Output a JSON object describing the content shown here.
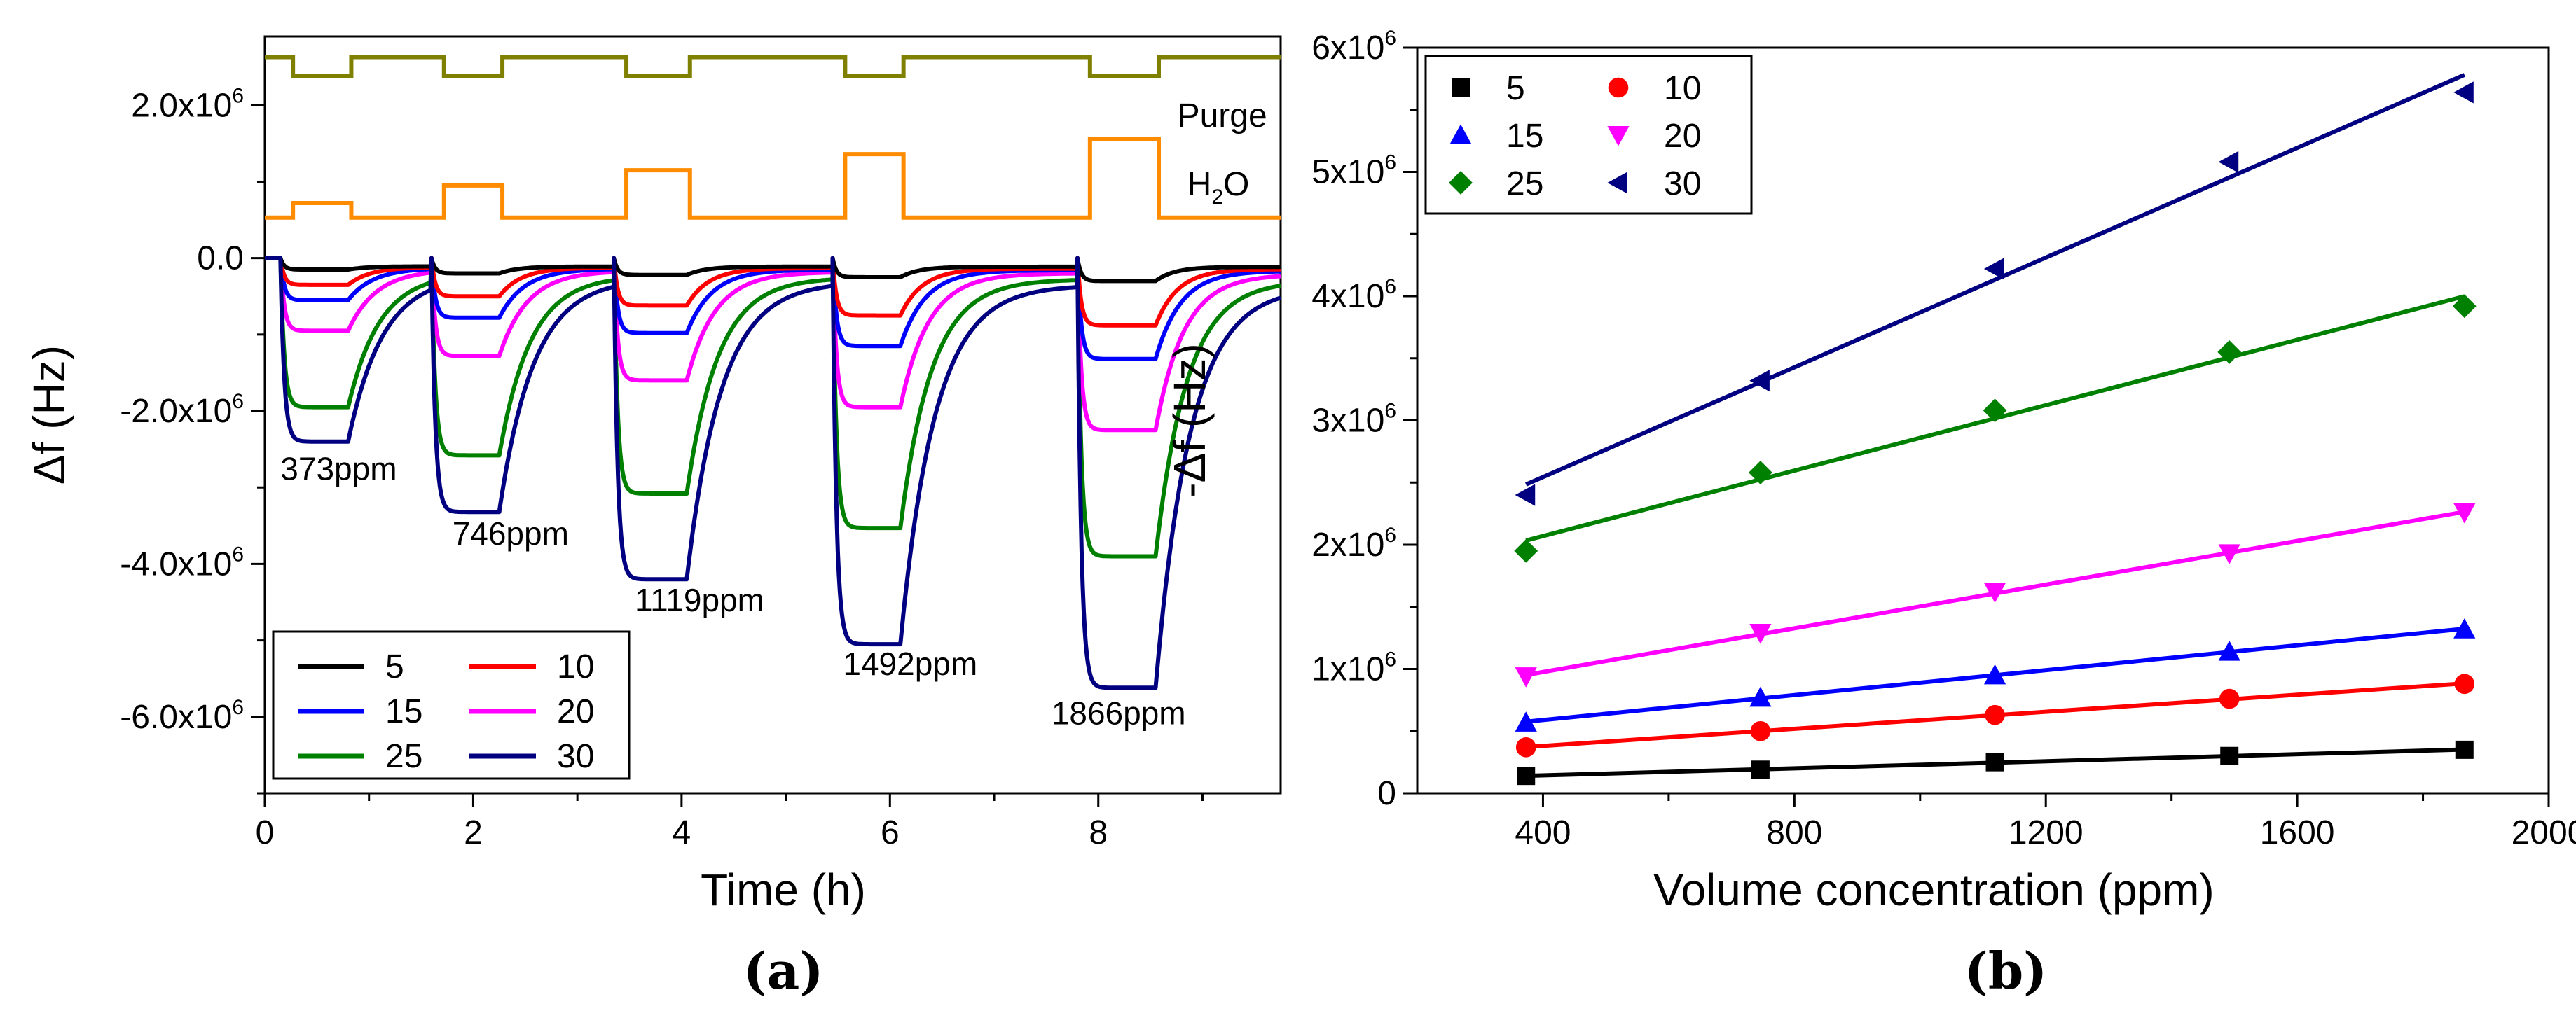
{
  "chart_data": [
    {
      "type": "line",
      "panel_label": "(a)",
      "xlabel": "Time (h)",
      "ylabel": "Δf (Hz)",
      "xlim": [
        0,
        9.75
      ],
      "ylim": [
        -7000000,
        2900000
      ],
      "x_ticks": [
        0,
        2,
        4,
        6,
        8
      ],
      "y_ticks": [
        {
          "value": 2000000,
          "mant": "2.0x10",
          "exp": "6"
        },
        {
          "value": 0,
          "mant": "0.0",
          "exp": ""
        },
        {
          "value": -2000000,
          "mant": "-2.0x10",
          "exp": "6"
        },
        {
          "value": -4000000,
          "mant": "-4.0x10",
          "exp": "6"
        },
        {
          "value": -6000000,
          "mant": "-6.0x10",
          "exp": "6"
        }
      ],
      "exposure_windows": [
        [
          0.15,
          0.8
        ],
        [
          1.6,
          2.25
        ],
        [
          3.35,
          4.05
        ],
        [
          5.45,
          6.1
        ],
        [
          7.8,
          8.55
        ]
      ],
      "series": [
        {
          "name": "5",
          "color": "#000000",
          "plateaus": [
            -150000,
            -200000,
            -220000,
            -250000,
            -300000
          ]
        },
        {
          "name": "10",
          "color": "#ff0000",
          "plateaus": [
            -350000,
            -500000,
            -620000,
            -750000,
            -880000
          ]
        },
        {
          "name": "15",
          "color": "#0000ff",
          "plateaus": [
            -550000,
            -780000,
            -980000,
            -1150000,
            -1320000
          ]
        },
        {
          "name": "20",
          "color": "#ff00ff",
          "plateaus": [
            -950000,
            -1280000,
            -1600000,
            -1950000,
            -2250000
          ]
        },
        {
          "name": "25",
          "color": "#008000",
          "plateaus": [
            -1950000,
            -2580000,
            -3080000,
            -3530000,
            -3900000
          ]
        },
        {
          "name": "30",
          "color": "#000080",
          "plateaus": [
            -2400000,
            -3320000,
            -4200000,
            -5050000,
            -5620000
          ]
        }
      ],
      "purge": {
        "name": "Purge",
        "color": "#808000",
        "high": 2630000,
        "low": 2380000
      },
      "h2o": {
        "name": "H2O",
        "label_main": "H",
        "label_sub": "2",
        "label_tail": "O",
        "color": "#ff8c00",
        "base": 530000,
        "peaks": [
          720000,
          950000,
          1150000,
          1360000,
          1560000
        ]
      },
      "annotations": [
        {
          "text": "373ppm",
          "x": 0.15,
          "y": -2900000
        },
        {
          "text": "746ppm",
          "x": 1.8,
          "y": -3750000
        },
        {
          "text": "1119ppm",
          "x": 3.55,
          "y": -4620000
        },
        {
          "text": "1492ppm",
          "x": 5.55,
          "y": -5450000
        },
        {
          "text": "1866ppm",
          "x": 7.55,
          "y": -6100000
        }
      ],
      "legend": {
        "placement": "bottom-left"
      }
    },
    {
      "type": "scatter",
      "panel_label": "(b)",
      "xlabel": "Volume concentration (ppm)",
      "ylabel": "-Δf (Hz)",
      "xlim": [
        200,
        2000
      ],
      "ylim": [
        0,
        6000000
      ],
      "x_ticks": [
        400,
        800,
        1200,
        1600,
        2000
      ],
      "y_ticks": [
        {
          "value": 0,
          "mant": "0",
          "exp": ""
        },
        {
          "value": 1000000,
          "mant": "1x10",
          "exp": "6"
        },
        {
          "value": 2000000,
          "mant": "2x10",
          "exp": "6"
        },
        {
          "value": 3000000,
          "mant": "3x10",
          "exp": "6"
        },
        {
          "value": 4000000,
          "mant": "4x10",
          "exp": "6"
        },
        {
          "value": 5000000,
          "mant": "5x10",
          "exp": "6"
        },
        {
          "value": 6000000,
          "mant": "6x10",
          "exp": "6"
        }
      ],
      "x": [
        373,
        746,
        1119,
        1492,
        1866
      ],
      "series": [
        {
          "name": "5",
          "color": "#000000",
          "marker": "square",
          "values": [
            140000,
            190000,
            250000,
            300000,
            350000
          ]
        },
        {
          "name": "10",
          "color": "#ff0000",
          "marker": "circle",
          "values": [
            370000,
            500000,
            630000,
            760000,
            880000
          ]
        },
        {
          "name": "15",
          "color": "#0000ff",
          "marker": "triangle-up",
          "values": [
            570000,
            770000,
            950000,
            1140000,
            1320000
          ]
        },
        {
          "name": "20",
          "color": "#ff00ff",
          "marker": "triangle-down",
          "values": [
            940000,
            1290000,
            1620000,
            1930000,
            2260000
          ]
        },
        {
          "name": "25",
          "color": "#008000",
          "marker": "diamond",
          "values": [
            1950000,
            2580000,
            3080000,
            3550000,
            3920000
          ]
        },
        {
          "name": "30",
          "color": "#000080",
          "marker": "triangle-left",
          "values": [
            2400000,
            3320000,
            4220000,
            5080000,
            5640000
          ]
        }
      ],
      "legend": {
        "placement": "top-left"
      }
    }
  ]
}
